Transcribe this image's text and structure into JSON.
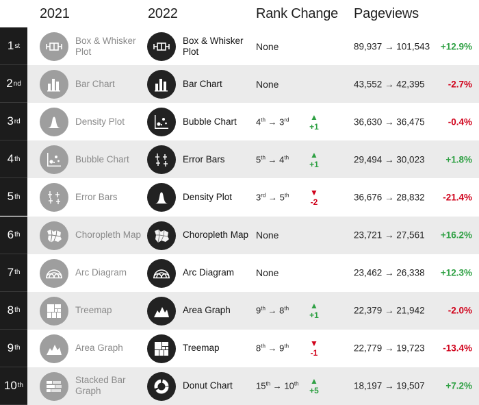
{
  "headers": {
    "y2021": "2021",
    "y2022": "2022",
    "rank_change": "Rank Change",
    "pageviews": "Pageviews"
  },
  "colors": {
    "positive": "#2ea043",
    "negative": "#d0021b",
    "rank_bg": "#1c1c1c",
    "icon_2021": "#9e9e9e",
    "icon_2022": "#222222"
  },
  "rows": [
    {
      "rank_num": "1",
      "rank_suffix": "st",
      "old_name": "Box & Whisker Plot",
      "old_icon": "box-whisker-icon",
      "new_name": "Box & Whisker Plot",
      "new_icon": "box-whisker-icon",
      "none": "None",
      "pageviews": "89,937 → 101,543",
      "pct": "+12.9%",
      "dir": "pos"
    },
    {
      "rank_num": "2",
      "rank_suffix": "nd",
      "old_name": "Bar Chart",
      "old_icon": "bar-chart-icon",
      "new_name": "Bar Chart",
      "new_icon": "bar-chart-icon",
      "none": "None",
      "pageviews": "43,552 → 42,395",
      "pct": "-2.7%",
      "dir": "neg"
    },
    {
      "rank_num": "3",
      "rank_suffix": "rd",
      "old_name": "Density Plot",
      "old_icon": "density-plot-icon",
      "new_name": "Bubble Chart",
      "new_icon": "bubble-chart-icon",
      "from": "4",
      "from_suf": "th",
      "to": "3",
      "to_suf": "rd",
      "arrow": "▲",
      "delta": "+1",
      "pageviews": "36,630 → 36,475",
      "pct": "-0.4%",
      "dir": "neg"
    },
    {
      "rank_num": "4",
      "rank_suffix": "th",
      "old_name": "Bubble Chart",
      "old_icon": "bubble-chart-icon",
      "new_name": "Error Bars",
      "new_icon": "error-bars-icon",
      "from": "5",
      "from_suf": "th",
      "to": "4",
      "to_suf": "th",
      "arrow": "▲",
      "delta": "+1",
      "pageviews": "29,494 → 30,023",
      "pct": "+1.8%",
      "dir": "pos"
    },
    {
      "rank_num": "5",
      "rank_suffix": "th",
      "old_name": "Error Bars",
      "old_icon": "error-bars-icon",
      "new_name": "Density Plot",
      "new_icon": "density-plot-icon",
      "from": "3",
      "from_suf": "rd",
      "to": "5",
      "to_suf": "th",
      "arrow": "▼",
      "delta": "-2",
      "pageviews": "36,676 → 28,832",
      "pct": "-21.4%",
      "dir": "neg"
    },
    {
      "rank_num": "6",
      "rank_suffix": "th",
      "old_name": "Choropleth Map",
      "old_icon": "choropleth-map-icon",
      "new_name": "Choropleth Map",
      "new_icon": "choropleth-map-icon",
      "none": "None",
      "pageviews": "23,721 → 27,561",
      "pct": "+16.2%",
      "dir": "pos"
    },
    {
      "rank_num": "7",
      "rank_suffix": "th",
      "old_name": "Arc Diagram",
      "old_icon": "arc-diagram-icon",
      "new_name": "Arc Diagram",
      "new_icon": "arc-diagram-icon",
      "none": "None",
      "pageviews": "23,462 → 26,338",
      "pct": "+12.3%",
      "dir": "pos"
    },
    {
      "rank_num": "8",
      "rank_suffix": "th",
      "old_name": "Treemap",
      "old_icon": "treemap-icon",
      "new_name": "Area Graph",
      "new_icon": "area-graph-icon",
      "from": "9",
      "from_suf": "th",
      "to": "8",
      "to_suf": "th",
      "arrow": "▲",
      "delta": "+1",
      "pageviews": "22,379 → 21,942",
      "pct": "-2.0%",
      "dir": "neg"
    },
    {
      "rank_num": "9",
      "rank_suffix": "th",
      "old_name": "Area Graph",
      "old_icon": "area-graph-icon",
      "new_name": "Treemap",
      "new_icon": "treemap-icon",
      "from": "8",
      "from_suf": "th",
      "to": "9",
      "to_suf": "th",
      "arrow": "▼",
      "delta": "-1",
      "pageviews": "22,779 → 19,723",
      "pct": "-13.4%",
      "dir": "neg"
    },
    {
      "rank_num": "10",
      "rank_suffix": "th",
      "old_name": "Stacked Bar Graph",
      "old_icon": "stacked-bar-icon",
      "new_name": "Donut Chart",
      "new_icon": "donut-chart-icon",
      "from": "15",
      "from_suf": "th",
      "to": "10",
      "to_suf": "th",
      "arrow": "▲",
      "delta": "+5",
      "pageviews": "18,197 → 19,507",
      "pct": "+7.2%",
      "dir": "pos"
    }
  ]
}
